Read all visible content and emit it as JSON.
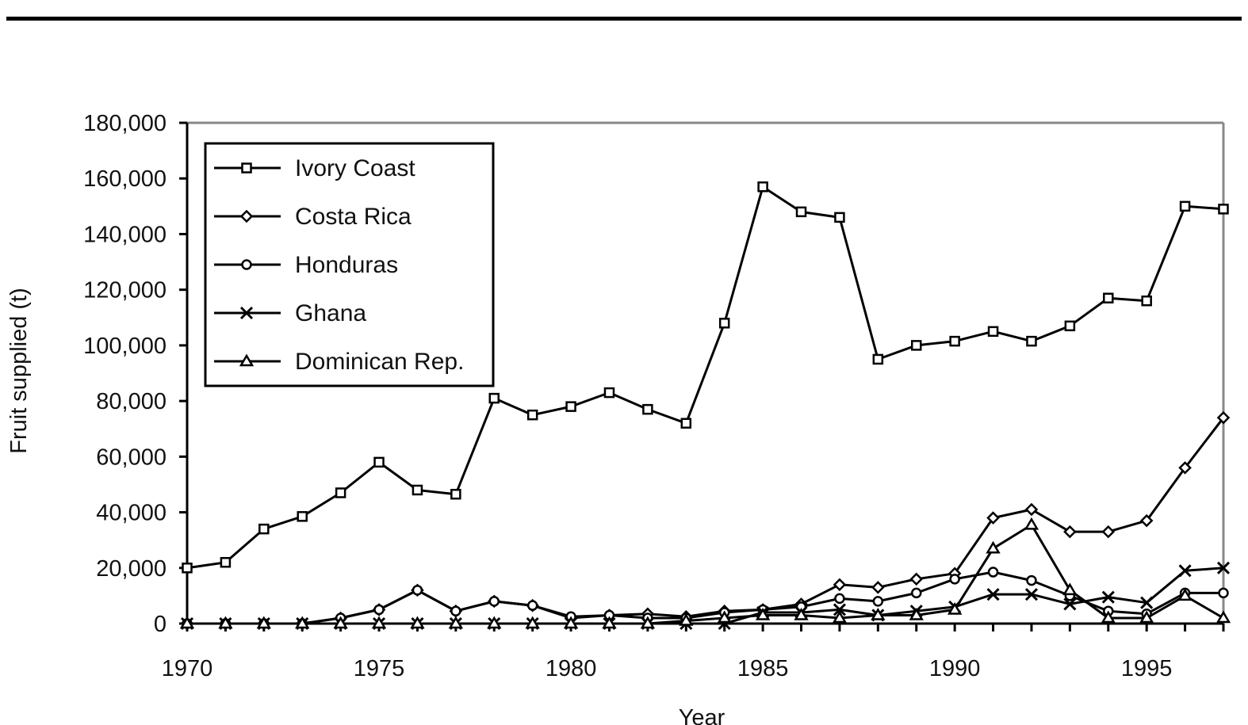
{
  "chart_data": {
    "type": "line",
    "xlabel": "Year",
    "ylabel": "Fruit supplied (t)",
    "xlim": [
      1970,
      1997
    ],
    "ylim": [
      0,
      180000
    ],
    "x_ticks": [
      "1970",
      "1975",
      "1980",
      "1985",
      "1990",
      "1995"
    ],
    "y_ticks": [
      "0",
      "20,000",
      "40,000",
      "60,000",
      "80,000",
      "100,000",
      "120,000",
      "140,000",
      "160,000",
      "180,000"
    ],
    "grid": false,
    "legend_position": "top-left",
    "x": [
      1970,
      1971,
      1972,
      1973,
      1974,
      1975,
      1976,
      1977,
      1978,
      1979,
      1980,
      1981,
      1982,
      1983,
      1984,
      1985,
      1986,
      1987,
      1988,
      1989,
      1990,
      1991,
      1992,
      1993,
      1994,
      1995,
      1996,
      1997
    ],
    "series": [
      {
        "name": "Ivory Coast",
        "marker": "square",
        "values": [
          20000,
          22000,
          34000,
          38500,
          47000,
          58000,
          48000,
          46500,
          81000,
          75000,
          78000,
          83000,
          77000,
          72000,
          108000,
          157000,
          148000,
          146000,
          95000,
          100000,
          101500,
          105000,
          101500,
          107000,
          117000,
          116000,
          150000,
          149000
        ]
      },
      {
        "name": "Costa Rica",
        "marker": "diamond",
        "values": [
          0,
          0,
          0,
          0,
          2000,
          5000,
          12000,
          4500,
          8000,
          6500,
          2000,
          3000,
          3500,
          2500,
          4500,
          5000,
          7000,
          14000,
          13000,
          16000,
          18000,
          38000,
          41000,
          33000,
          33000,
          37000,
          56000,
          74000
        ]
      },
      {
        "name": "Honduras",
        "marker": "circle",
        "values": [
          0,
          0,
          0,
          0,
          2000,
          5000,
          12000,
          4500,
          8000,
          6500,
          2500,
          3000,
          2000,
          2000,
          4000,
          5000,
          6000,
          9000,
          8000,
          11000,
          16000,
          18500,
          15500,
          10000,
          4500,
          3500,
          11000,
          11000
        ]
      },
      {
        "name": "Ghana",
        "marker": "x",
        "values": [
          0,
          0,
          0,
          0,
          0,
          0,
          0,
          0,
          0,
          0,
          0,
          0,
          0,
          0,
          0,
          4000,
          4000,
          5000,
          3000,
          4500,
          6000,
          10500,
          10500,
          7000,
          9500,
          7500,
          19000,
          20000
        ]
      },
      {
        "name": "Dominican Rep.",
        "marker": "triangle",
        "values": [
          0,
          0,
          0,
          0,
          0,
          0,
          0,
          0,
          0,
          0,
          0,
          0,
          0,
          1000,
          2000,
          3000,
          3000,
          2000,
          3000,
          3000,
          5000,
          27000,
          35500,
          12000,
          2000,
          2000,
          10000,
          2000
        ]
      }
    ]
  }
}
